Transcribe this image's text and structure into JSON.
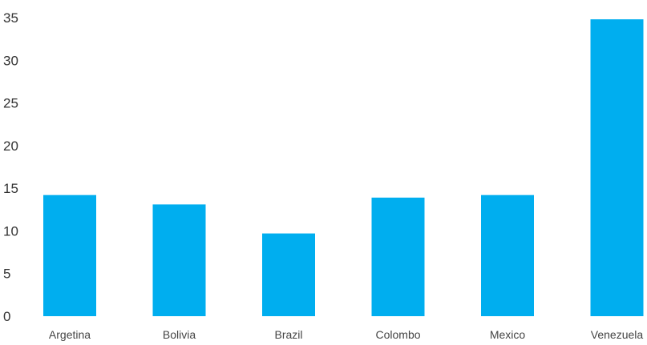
{
  "chart_data": {
    "type": "bar",
    "categories": [
      "Argetina",
      "Bolivia",
      "Brazil",
      "Colombo",
      "Mexico",
      "Venezuela"
    ],
    "values": [
      14.2,
      13.1,
      9.7,
      13.9,
      14.2,
      34.8
    ],
    "ylim": [
      0,
      35
    ],
    "yticks": [
      "0",
      "5",
      "10",
      "15",
      "20",
      "25",
      "30",
      "35"
    ],
    "grid": false,
    "bar_color": "#00aeef",
    "title": "",
    "xlabel": "",
    "ylabel": ""
  }
}
